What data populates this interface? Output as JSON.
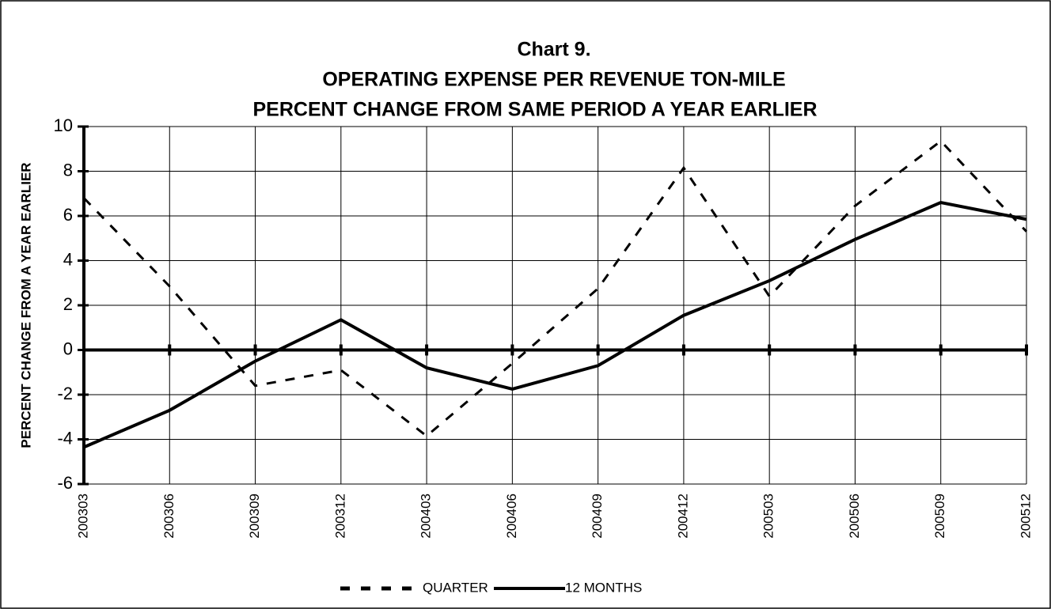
{
  "chart_data": {
    "type": "line",
    "title": [
      "Chart 9.",
      "OPERATING EXPENSE PER REVENUE TON-MILE",
      "PERCENT CHANGE FROM SAME PERIOD A YEAR EARLIER"
    ],
    "y_label": "PERCENT CHANGE FROM A YEAR EARLIER",
    "categories": [
      "200303",
      "200306",
      "200309",
      "200312",
      "200403",
      "200406",
      "200409",
      "200412",
      "200503",
      "200506",
      "200509",
      "200512"
    ],
    "series": [
      {
        "name": "QUARTER",
        "color": "#000000",
        "dash": true,
        "values": [
          6.8,
          2.85,
          -1.6,
          -0.9,
          -3.85,
          -0.6,
          2.75,
          8.15,
          2.4,
          6.45,
          9.35,
          5.3
        ]
      },
      {
        "name": "12 MONTHS",
        "color": "#000000",
        "dash": false,
        "values": [
          -4.35,
          -2.7,
          -0.5,
          1.35,
          -0.8,
          -1.75,
          -0.7,
          1.55,
          3.1,
          4.95,
          6.6,
          5.85
        ]
      }
    ],
    "ylim": [
      -6,
      10
    ],
    "yticks": [
      -6,
      -4,
      -2,
      0,
      2,
      4,
      6,
      8,
      10
    ],
    "grid": true,
    "legend": "bottom"
  }
}
